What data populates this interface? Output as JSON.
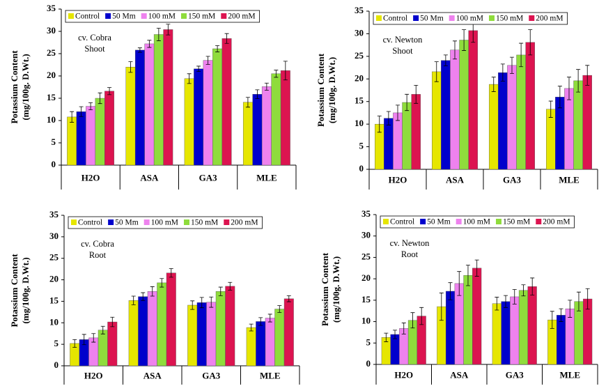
{
  "chart_data": [
    {
      "type": "bar",
      "y_label": [
        "Potassium Content",
        "(mg/100g. D.Wt.)"
      ],
      "annotation": [
        "cv. Cobra",
        "Shoot"
      ],
      "categories": [
        "H2O",
        "ASA",
        "GA3",
        "MLE"
      ],
      "ylim": [
        0,
        35
      ],
      "yticks": [
        0,
        5,
        10,
        15,
        20,
        25,
        30,
        35
      ],
      "series": [
        {
          "name": "Control",
          "color": "#e6e600",
          "values": [
            10.8,
            22,
            19.4,
            14.1
          ],
          "errors": [
            1.2,
            1.2,
            1.1,
            1.1
          ]
        },
        {
          "name": "50 Mm",
          "color": "#0000cc",
          "values": [
            12,
            25.8,
            21.6,
            15.9
          ],
          "errors": [
            1.1,
            0.5,
            0.6,
            1.0
          ]
        },
        {
          "name": "100 mM",
          "color": "#ee82ee",
          "values": [
            13.2,
            27.2,
            23.5,
            17.6
          ],
          "errors": [
            0.8,
            0.8,
            0.9,
            0.8
          ]
        },
        {
          "name": "150 mM",
          "color": "#8fdc3c",
          "values": [
            15,
            29.3,
            26.1,
            20.5
          ],
          "errors": [
            1.2,
            1.4,
            0.7,
            0.8
          ]
        },
        {
          "name": "200 mM",
          "color": "#dc1450",
          "values": [
            16.6,
            30.4,
            28.4,
            21.2
          ],
          "errors": [
            0.8,
            1.2,
            1.1,
            2.1
          ]
        }
      ]
    },
    {
      "type": "bar",
      "y_label": [
        "Potassium Content",
        "(mg/100g. D.Wt.)"
      ],
      "annotation": [
        "cv. Newton",
        "Shoot"
      ],
      "categories": [
        "H2O",
        "ASA",
        "GA3",
        "MLE"
      ],
      "ylim": [
        0,
        35
      ],
      "yticks": [
        0,
        5,
        10,
        15,
        20,
        25,
        30,
        35
      ],
      "series": [
        {
          "name": "Control",
          "color": "#e6e600",
          "values": [
            10,
            21.6,
            18.8,
            13.3
          ],
          "errors": [
            1.8,
            2.2,
            1.6,
            1.8
          ]
        },
        {
          "name": "50 Mm",
          "color": "#0000cc",
          "values": [
            11.3,
            24.1,
            21.4,
            16
          ],
          "errors": [
            1.5,
            1.2,
            1.9,
            2.4
          ]
        },
        {
          "name": "100 mM",
          "color": "#ee82ee",
          "values": [
            12.5,
            26.4,
            23,
            17.9
          ],
          "errors": [
            1.7,
            2.0,
            1.8,
            2.5
          ]
        },
        {
          "name": "150 mM",
          "color": "#8fdc3c",
          "values": [
            14.8,
            28.6,
            25.3,
            19.6
          ],
          "errors": [
            1.8,
            2.3,
            2.6,
            2.5
          ]
        },
        {
          "name": "200 mM",
          "color": "#dc1450",
          "values": [
            16.6,
            30.7,
            28.1,
            20.8
          ],
          "errors": [
            2.0,
            2.6,
            2.8,
            2.2
          ]
        }
      ]
    },
    {
      "type": "bar",
      "y_label": [
        "Potassium Content",
        "(mg/100g. D.Wt.)"
      ],
      "annotation": [
        "cv. Cobra",
        "Root"
      ],
      "categories": [
        "H2O",
        "ASA",
        "GA3",
        "MLE"
      ],
      "ylim": [
        0,
        35
      ],
      "yticks": [
        0,
        5,
        10,
        15,
        20,
        25,
        30,
        35
      ],
      "series": [
        {
          "name": "Control",
          "color": "#e6e600",
          "values": [
            5.2,
            15.2,
            14.1,
            8.9
          ],
          "errors": [
            0.9,
            1.0,
            1.0,
            0.8
          ]
        },
        {
          "name": "50 Mm",
          "color": "#0000cc",
          "values": [
            6.1,
            16.1,
            14.7,
            10.3
          ],
          "errors": [
            1.2,
            0.9,
            1.2,
            0.9
          ]
        },
        {
          "name": "100 mM",
          "color": "#ee82ee",
          "values": [
            6.5,
            17.3,
            14.8,
            11.1
          ],
          "errors": [
            1.0,
            1.1,
            1.2,
            0.9
          ]
        },
        {
          "name": "150 mM",
          "color": "#8fdc3c",
          "values": [
            8.3,
            19.3,
            17.3,
            13.2
          ],
          "errors": [
            0.9,
            1.0,
            1.0,
            0.8
          ]
        },
        {
          "name": "200 mM",
          "color": "#dc1450",
          "values": [
            10.2,
            21.6,
            18.5,
            15.6
          ],
          "errors": [
            1.1,
            1.0,
            0.9,
            0.7
          ]
        }
      ]
    },
    {
      "type": "bar",
      "y_label": [
        "Potassium Content",
        "(mg/100g. D.Wt.)"
      ],
      "annotation": [
        "cv. Newton",
        "Root"
      ],
      "categories": [
        "H2O",
        "ASA",
        "GA3",
        "MLE"
      ],
      "ylim": [
        0,
        35
      ],
      "yticks": [
        0,
        5,
        10,
        15,
        20,
        25,
        30,
        35
      ],
      "series": [
        {
          "name": "Control",
          "color": "#e6e600",
          "values": [
            6.3,
            13.5,
            14.2,
            10.4
          ],
          "errors": [
            1.0,
            3.2,
            1.5,
            2.0
          ]
        },
        {
          "name": "50 Mm",
          "color": "#0000cc",
          "values": [
            7,
            17.1,
            14.7,
            11.5
          ],
          "errors": [
            1.0,
            2.0,
            1.4,
            1.5
          ]
        },
        {
          "name": "100 mM",
          "color": "#ee82ee",
          "values": [
            8.4,
            18.9,
            15.8,
            13
          ],
          "errors": [
            1.3,
            2.8,
            1.7,
            2.0
          ]
        },
        {
          "name": "150 mM",
          "color": "#8fdc3c",
          "values": [
            10.3,
            20.8,
            17.3,
            14.7
          ],
          "errors": [
            1.8,
            2.4,
            1.3,
            2.2
          ]
        },
        {
          "name": "200 mM",
          "color": "#dc1450",
          "values": [
            11.3,
            22.5,
            18.2,
            15.3
          ],
          "errors": [
            2.0,
            1.9,
            2.0,
            2.4
          ]
        }
      ]
    }
  ]
}
